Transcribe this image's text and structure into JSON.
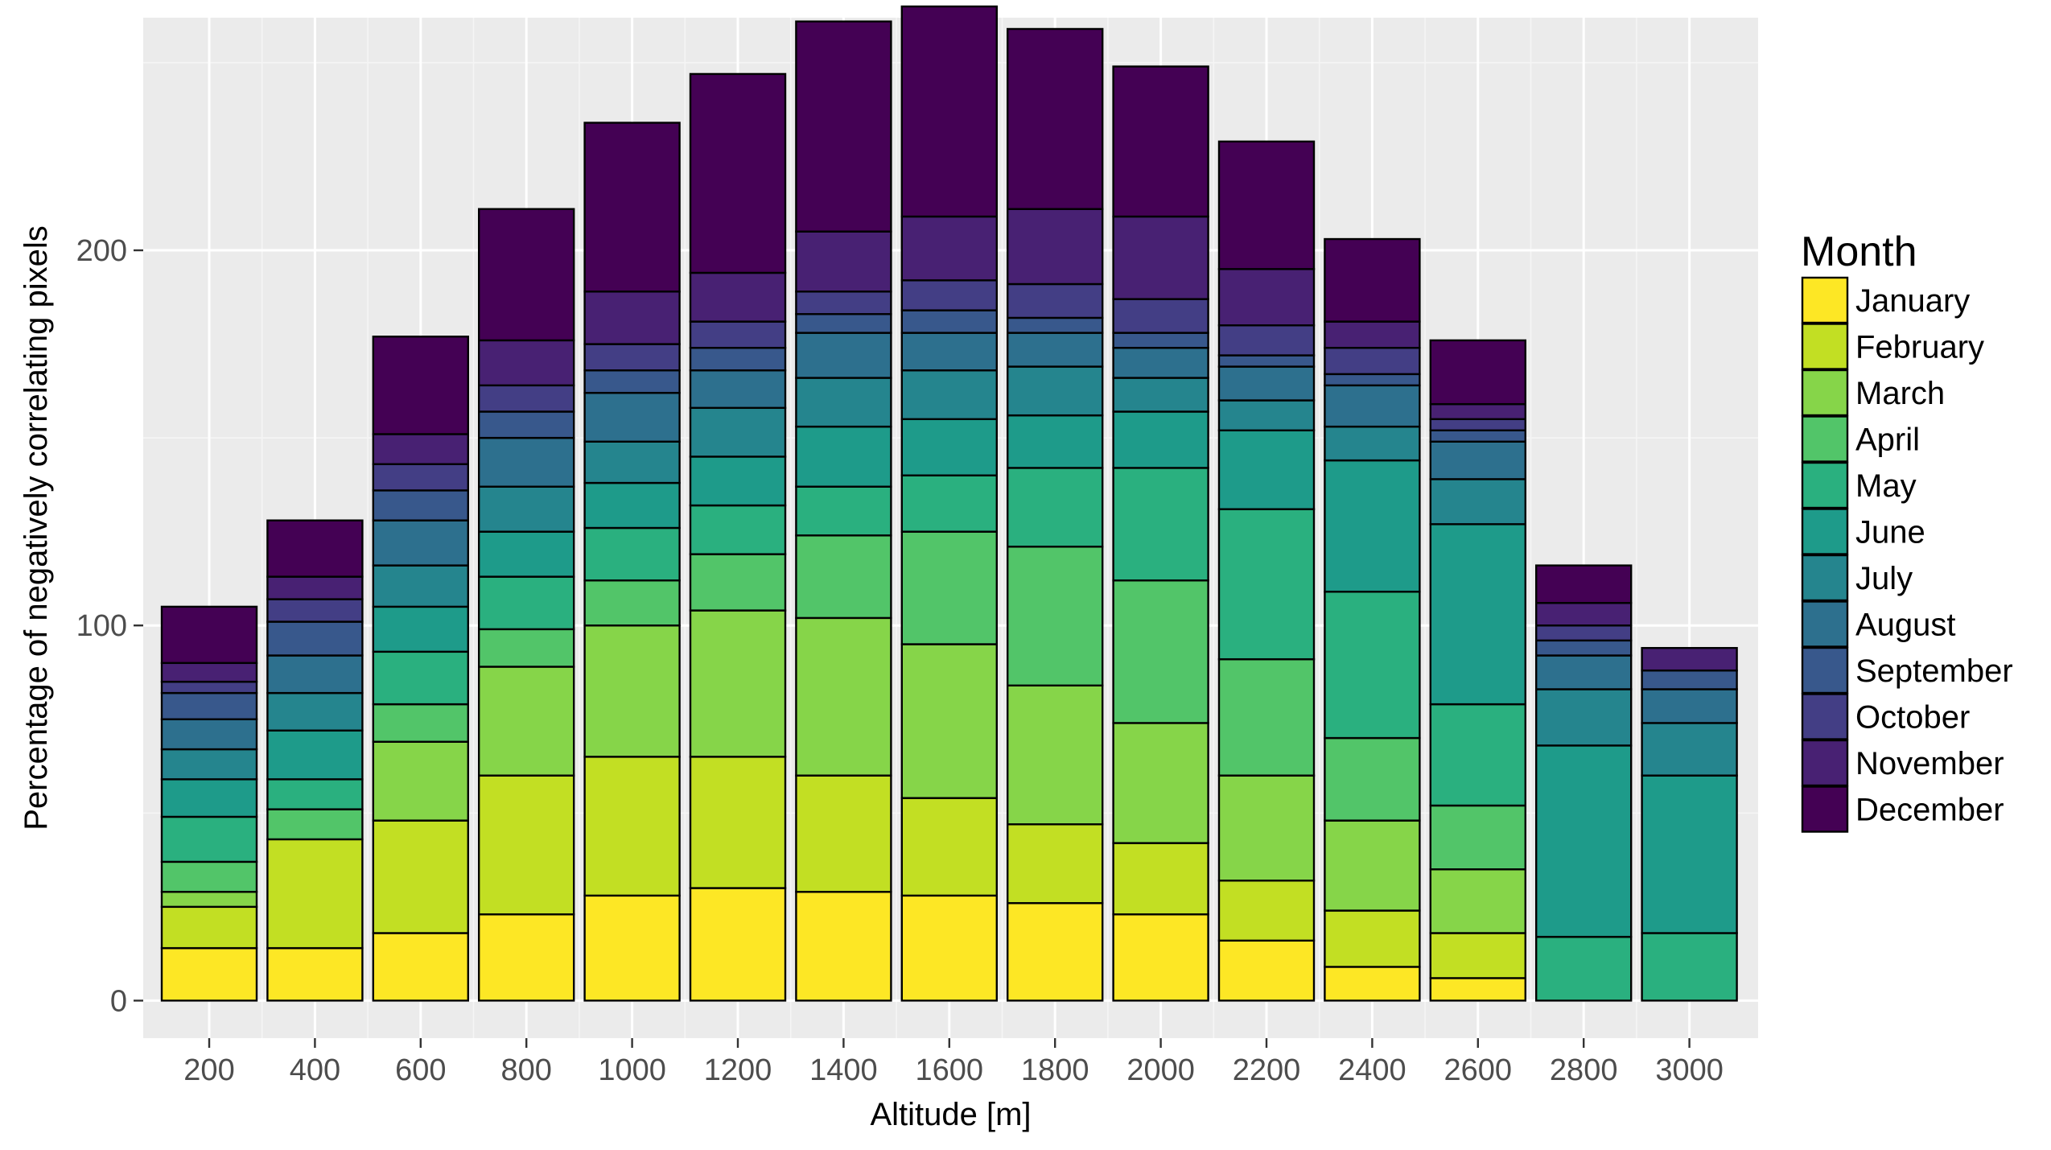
{
  "chart_data": {
    "type": "bar",
    "stacked": true,
    "title": "",
    "xlabel": "Altitude [m]",
    "ylabel": "Percentage of negatively correlating pixels",
    "ylim": [
      -10,
      262
    ],
    "yticks": [
      0,
      100,
      200
    ],
    "categories": [
      "200",
      "400",
      "600",
      "800",
      "1000",
      "1200",
      "1400",
      "1600",
      "1800",
      "2000",
      "2200",
      "2400",
      "2600",
      "2800",
      "3000"
    ],
    "legend": {
      "title": "Month",
      "position": "right"
    },
    "series": [
      {
        "name": "January",
        "color": "#FDE725",
        "values": [
          14,
          14,
          18,
          23,
          28,
          30,
          29,
          28,
          26,
          23,
          16,
          9,
          6,
          0,
          0
        ]
      },
      {
        "name": "February",
        "color": "#C2DF23",
        "values": [
          11,
          29,
          30,
          37,
          37,
          35,
          31,
          26,
          21,
          19,
          16,
          15,
          12,
          0,
          0
        ]
      },
      {
        "name": "March",
        "color": "#86D549",
        "values": [
          4,
          0,
          21,
          29,
          35,
          39,
          42,
          41,
          37,
          32,
          28,
          24,
          17,
          0,
          0
        ]
      },
      {
        "name": "April",
        "color": "#52C569",
        "values": [
          8,
          8,
          10,
          10,
          12,
          15,
          22,
          30,
          37,
          38,
          31,
          22,
          17,
          0,
          0
        ]
      },
      {
        "name": "May",
        "color": "#2AB07F",
        "values": [
          12,
          8,
          14,
          14,
          14,
          13,
          13,
          15,
          21,
          30,
          40,
          39,
          27,
          17,
          18
        ]
      },
      {
        "name": "June",
        "color": "#1E9B8A",
        "values": [
          10,
          13,
          12,
          12,
          12,
          13,
          16,
          15,
          14,
          15,
          21,
          35,
          48,
          51,
          42
        ]
      },
      {
        "name": "July",
        "color": "#25858E",
        "values": [
          8,
          10,
          11,
          12,
          11,
          13,
          13,
          13,
          13,
          9,
          8,
          9,
          12,
          15,
          14
        ]
      },
      {
        "name": "August",
        "color": "#2D708E",
        "values": [
          8,
          10,
          12,
          13,
          13,
          10,
          12,
          10,
          9,
          8,
          9,
          11,
          10,
          9,
          9
        ]
      },
      {
        "name": "September",
        "color": "#38588C",
        "values": [
          7,
          9,
          8,
          7,
          6,
          6,
          5,
          6,
          4,
          4,
          3,
          3,
          3,
          4,
          5
        ]
      },
      {
        "name": "October",
        "color": "#433E85",
        "values": [
          3,
          6,
          7,
          7,
          7,
          7,
          6,
          8,
          9,
          9,
          8,
          7,
          3,
          4,
          0
        ]
      },
      {
        "name": "November",
        "color": "#482173",
        "values": [
          5,
          6,
          8,
          12,
          14,
          13,
          16,
          17,
          20,
          22,
          15,
          7,
          4,
          6,
          6
        ]
      },
      {
        "name": "December",
        "color": "#440154",
        "values": [
          15,
          15,
          26,
          35,
          45,
          53,
          56,
          56,
          48,
          40,
          34,
          22,
          17,
          10,
          0
        ]
      }
    ]
  }
}
